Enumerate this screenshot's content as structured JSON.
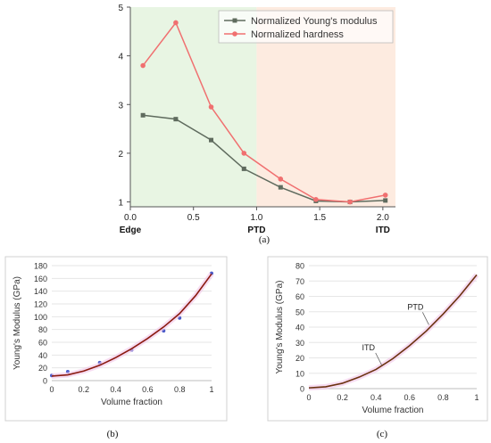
{
  "chart_data": [
    {
      "type": "line",
      "panel_label": "(a)",
      "xlim": [
        0,
        2.1
      ],
      "ylim": [
        0.9,
        5
      ],
      "x_ticks": [
        0.0,
        0.5,
        1.0,
        1.5,
        2.0
      ],
      "y_ticks": [
        1,
        2,
        3,
        4,
        5
      ],
      "x_tick_labels": [
        "0.0",
        "0.5",
        "1.0",
        "1.5",
        "2.0"
      ],
      "y_tick_labels": [
        "1",
        "2",
        "3",
        "4",
        "5"
      ],
      "region_labels": [
        {
          "x": 0.0,
          "label": "Edge"
        },
        {
          "x": 1.0,
          "label": "PTD"
        },
        {
          "x": 2.0,
          "label": "ITD"
        }
      ],
      "regions": [
        {
          "from": 0.0,
          "to": 1.0,
          "color": "#e8f5e3"
        },
        {
          "from": 1.0,
          "to": 2.1,
          "color": "#fdebe0"
        }
      ],
      "legend_position": "top-right",
      "series": [
        {
          "name": "Normalized Young's modulus",
          "color": "#5f6b5e",
          "marker": "square",
          "x": [
            0.1,
            0.36,
            0.64,
            0.9,
            1.19,
            1.47,
            1.74,
            2.02
          ],
          "y": [
            2.78,
            2.7,
            2.27,
            1.68,
            1.3,
            1.02,
            1.0,
            1.03
          ]
        },
        {
          "name": "Normalized hardness",
          "color": "#f07070",
          "marker": "circle",
          "x": [
            0.1,
            0.36,
            0.64,
            0.9,
            1.19,
            1.47,
            1.74,
            2.02
          ],
          "y": [
            3.8,
            4.68,
            2.95,
            2.0,
            1.47,
            1.05,
            1.0,
            1.14
          ]
        }
      ]
    },
    {
      "type": "scatter",
      "panel_label": "(b)",
      "xlabel": "Volume fraction",
      "ylabel": "Young's Modulus (GPa)",
      "xlim": [
        0,
        1
      ],
      "ylim": [
        0,
        180
      ],
      "x_ticks": [
        0,
        0.2,
        0.4,
        0.6,
        0.8,
        1
      ],
      "y_ticks": [
        0,
        20,
        40,
        60,
        80,
        100,
        120,
        140,
        160,
        180
      ],
      "x_tick_labels": [
        "0",
        "0.2",
        "0.4",
        "0.6",
        "0.8",
        "1"
      ],
      "y_tick_labels": [
        "0",
        "20",
        "40",
        "60",
        "80",
        "100",
        "120",
        "140",
        "160",
        "180"
      ],
      "series": [
        {
          "kind": "points",
          "color": "#4a5ac8",
          "x": [
            0.0,
            0.1,
            0.3,
            0.5,
            0.7,
            0.8,
            1.0
          ],
          "y": [
            8,
            14,
            28,
            48,
            78,
            98,
            168
          ]
        },
        {
          "kind": "line",
          "color": "#8b1a10",
          "x": [
            0,
            0.1,
            0.2,
            0.3,
            0.4,
            0.5,
            0.6,
            0.7,
            0.8,
            0.9,
            1.0
          ],
          "y": [
            7,
            9,
            15,
            24,
            36,
            50,
            66,
            84,
            105,
            133,
            167
          ]
        }
      ]
    },
    {
      "type": "line",
      "panel_label": "(c)",
      "xlabel": "Volume fraction",
      "ylabel": "Young's Modulus (GPa)",
      "xlim": [
        0,
        1
      ],
      "ylim": [
        0,
        80
      ],
      "x_ticks": [
        0,
        0.2,
        0.4,
        0.6,
        0.8,
        1
      ],
      "y_ticks": [
        0,
        10,
        20,
        30,
        40,
        50,
        60,
        70,
        80
      ],
      "x_tick_labels": [
        "0",
        "0.2",
        "0.4",
        "0.6",
        "0.8",
        "1"
      ],
      "y_tick_labels": [
        "0",
        "10",
        "20",
        "30",
        "40",
        "50",
        "60",
        "70",
        "80"
      ],
      "annotations": [
        {
          "label": "ITD",
          "x": 0.44,
          "y": 14.5
        },
        {
          "label": "PTD",
          "x": 0.72,
          "y": 41
        }
      ],
      "series": [
        {
          "kind": "line",
          "color": "#6b3210",
          "x": [
            0,
            0.1,
            0.2,
            0.3,
            0.4,
            0.5,
            0.6,
            0.7,
            0.8,
            0.9,
            1.0
          ],
          "y": [
            0.5,
            1.2,
            3.5,
            7.5,
            12.5,
            19.5,
            28,
            37.5,
            48.5,
            60.5,
            74
          ]
        }
      ]
    }
  ]
}
